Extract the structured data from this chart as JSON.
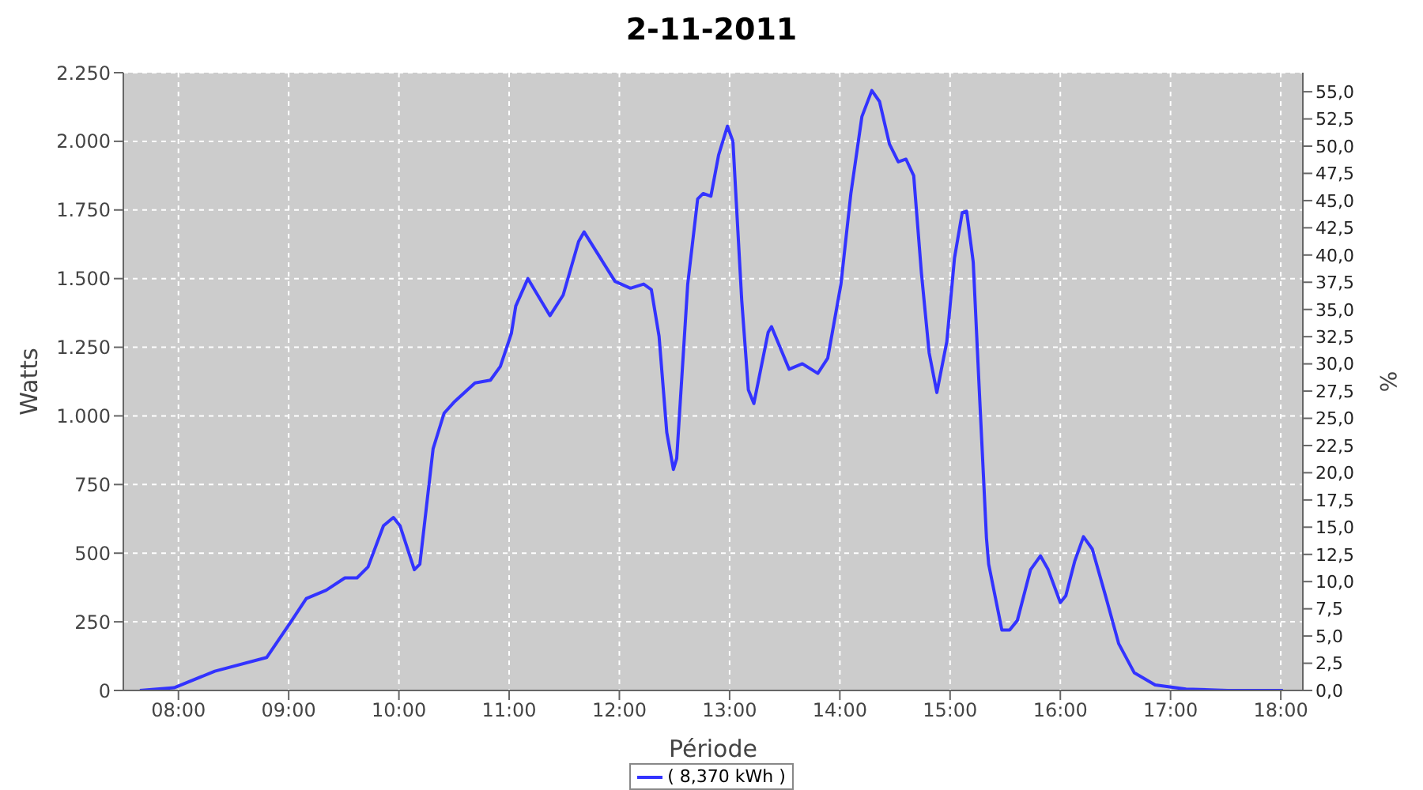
{
  "chart_data": {
    "type": "line",
    "title": "2-11-2011",
    "xlabel": "Période",
    "ylabel": "Watts",
    "y2label": "%",
    "xlim": [
      7.5,
      18.2
    ],
    "xticks": [
      {
        "value": 8,
        "label": "08:00"
      },
      {
        "value": 9,
        "label": "09:00"
      },
      {
        "value": 10,
        "label": "10:00"
      },
      {
        "value": 11,
        "label": "11:00"
      },
      {
        "value": 12,
        "label": "12:00"
      },
      {
        "value": 13,
        "label": "13:00"
      },
      {
        "value": 14,
        "label": "14:00"
      },
      {
        "value": 15,
        "label": "15:00"
      },
      {
        "value": 16,
        "label": "16:00"
      },
      {
        "value": 17,
        "label": "17:00"
      },
      {
        "value": 18,
        "label": "18:00"
      }
    ],
    "ylim": [
      0,
      2250
    ],
    "yticks": [
      0,
      250,
      500,
      750,
      {
        "value": 1000,
        "label": "1.000"
      },
      {
        "value": 1250,
        "label": "1.250"
      },
      {
        "value": 1500,
        "label": "1.500"
      },
      {
        "value": 1750,
        "label": "1.750"
      },
      {
        "value": 2000,
        "label": "2.000"
      },
      {
        "value": 2250,
        "label": "2.250"
      }
    ],
    "y2lim": [
      0,
      56.75
    ],
    "y2ticks": [
      {
        "value": 0,
        "label": "0,0"
      },
      {
        "value": 2.5,
        "label": "2,5"
      },
      {
        "value": 5,
        "label": "5,0"
      },
      {
        "value": 7.5,
        "label": "7,5"
      },
      {
        "value": 10,
        "label": "10,0"
      },
      {
        "value": 12.5,
        "label": "12,5"
      },
      {
        "value": 15,
        "label": "15,0"
      },
      {
        "value": 17.5,
        "label": "17,5"
      },
      {
        "value": 20,
        "label": "20,0"
      },
      {
        "value": 22.5,
        "label": "22,5"
      },
      {
        "value": 25,
        "label": "25,0"
      },
      {
        "value": 27.5,
        "label": "27,5"
      },
      {
        "value": 30,
        "label": "30,0"
      },
      {
        "value": 32.5,
        "label": "32,5"
      },
      {
        "value": 35,
        "label": "35,0"
      },
      {
        "value": 37.5,
        "label": "37,5"
      },
      {
        "value": 40,
        "label": "40,0"
      },
      {
        "value": 42.5,
        "label": "42,5"
      },
      {
        "value": 45,
        "label": "45,0"
      },
      {
        "value": 47.5,
        "label": "47,5"
      },
      {
        "value": 50,
        "label": "50,0"
      },
      {
        "value": 52.5,
        "label": "52,5"
      },
      {
        "value": 55,
        "label": "55,0"
      }
    ],
    "grid": true,
    "legend": "bottom",
    "marker": "none",
    "line_style": "solid",
    "x": [
      7.65,
      7.96,
      8.33,
      8.8,
      9.02,
      9.16,
      9.34,
      9.51,
      9.62,
      9.72,
      9.86,
      9.95,
      10.01,
      10.14,
      10.19,
      10.31,
      10.41,
      10.5,
      10.69,
      10.83,
      10.92,
      11.02,
      11.06,
      11.17,
      11.37,
      11.49,
      11.63,
      11.68,
      11.82,
      11.96,
      12.1,
      12.22,
      12.29,
      12.36,
      12.43,
      12.49,
      12.52,
      12.62,
      12.71,
      12.76,
      12.83,
      12.9,
      12.98,
      13.03,
      13.11,
      13.17,
      13.22,
      13.35,
      13.38,
      13.54,
      13.66,
      13.8,
      13.89,
      14.01,
      14.1,
      14.2,
      14.29,
      14.36,
      14.45,
      14.53,
      14.6,
      14.67,
      14.74,
      14.81,
      14.88,
      14.97,
      15.04,
      15.11,
      15.15,
      15.21,
      15.26,
      15.33,
      15.35,
      15.47,
      15.54,
      15.61,
      15.73,
      15.82,
      15.89,
      16,
      16.05,
      16.13,
      16.21,
      16.29,
      16.41,
      16.53,
      16.67,
      16.86,
      17.14,
      17.52,
      18.02
    ],
    "series": [
      {
        "name": "( 8,370 kWh )",
        "color": "#3333ff",
        "values": [
          0,
          10,
          70,
          120,
          250,
          335,
          365,
          410,
          410,
          450,
          600,
          630,
          600,
          440,
          460,
          880,
          1010,
          1050,
          1120,
          1130,
          1180,
          1300,
          1400,
          1500,
          1365,
          1440,
          1635,
          1670,
          1580,
          1490,
          1465,
          1480,
          1460,
          1290,
          940,
          805,
          845,
          1480,
          1790,
          1810,
          1800,
          1950,
          2055,
          2000,
          1420,
          1095,
          1045,
          1305,
          1325,
          1170,
          1190,
          1155,
          1210,
          1480,
          1810,
          2090,
          2185,
          2145,
          1990,
          1925,
          1935,
          1875,
          1520,
          1230,
          1085,
          1270,
          1575,
          1740,
          1745,
          1560,
          1135,
          555,
          460,
          220,
          220,
          255,
          440,
          490,
          440,
          320,
          345,
          470,
          560,
          515,
          345,
          170,
          65,
          20,
          5,
          0,
          0
        ]
      }
    ]
  }
}
